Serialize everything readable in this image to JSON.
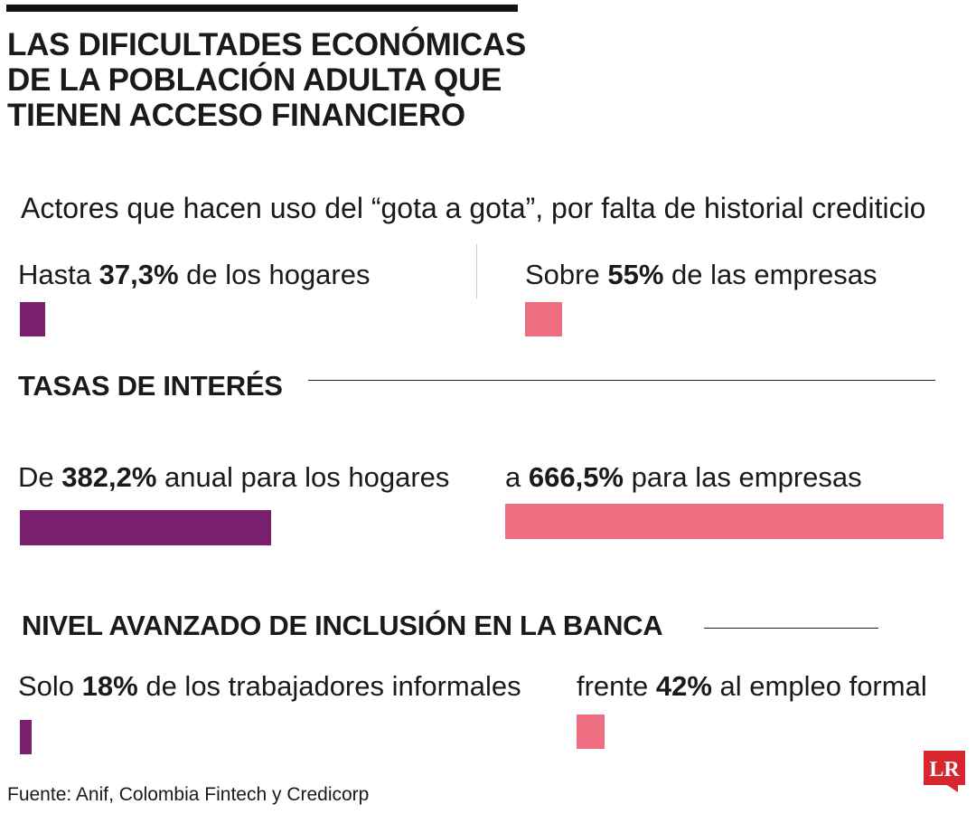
{
  "title": "LAS DIFICULTADES ECONÓMICAS DE LA POBLACIÓN ADULTA QUE TIENEN ACCESO FINANCIERO",
  "subtitle": "Actores que hacen uso del “gota a gota”, por falta de historial crediticio",
  "sections": {
    "tasas": "TASAS DE INTERÉS",
    "nivel": "NIVEL AVANZADO DE INCLUSIÓN EN LA BANCA"
  },
  "source": "Fuente: Anif, Colombia Fintech y Credicorp",
  "logo_text": "LR",
  "colors": {
    "purple": "#7a1f6e",
    "pink": "#ee6d80",
    "logo_red": "#d7262d"
  },
  "chart_data": [
    {
      "type": "bar",
      "group": "gota_a_gota",
      "items": [
        {
          "prefix": "Hasta ",
          "value_label": "37,3%",
          "suffix": " de los hogares",
          "value": 37.3,
          "color": "#7a1f6e"
        },
        {
          "prefix": "Sobre ",
          "value_label": "55%",
          "suffix": " de las empresas",
          "value": 55,
          "color": "#ee6d80"
        }
      ]
    },
    {
      "type": "bar",
      "group": "tasas",
      "items": [
        {
          "prefix": "De ",
          "value_label": "382,2%",
          "suffix": " anual para los hogares",
          "value": 382.2,
          "color": "#7a1f6e"
        },
        {
          "prefix": "a ",
          "value_label": "666,5%",
          "suffix": " para las empresas",
          "value": 666.5,
          "color": "#ee6d80"
        }
      ]
    },
    {
      "type": "bar",
      "group": "nivel",
      "items": [
        {
          "prefix": "Solo ",
          "value_label": "18%",
          "suffix": " de los trabajadores informales",
          "value": 18,
          "color": "#7a1f6e"
        },
        {
          "prefix": "frente ",
          "value_label": "42%",
          "suffix": " al empleo formal",
          "value": 42,
          "color": "#ee6d80"
        }
      ]
    }
  ]
}
